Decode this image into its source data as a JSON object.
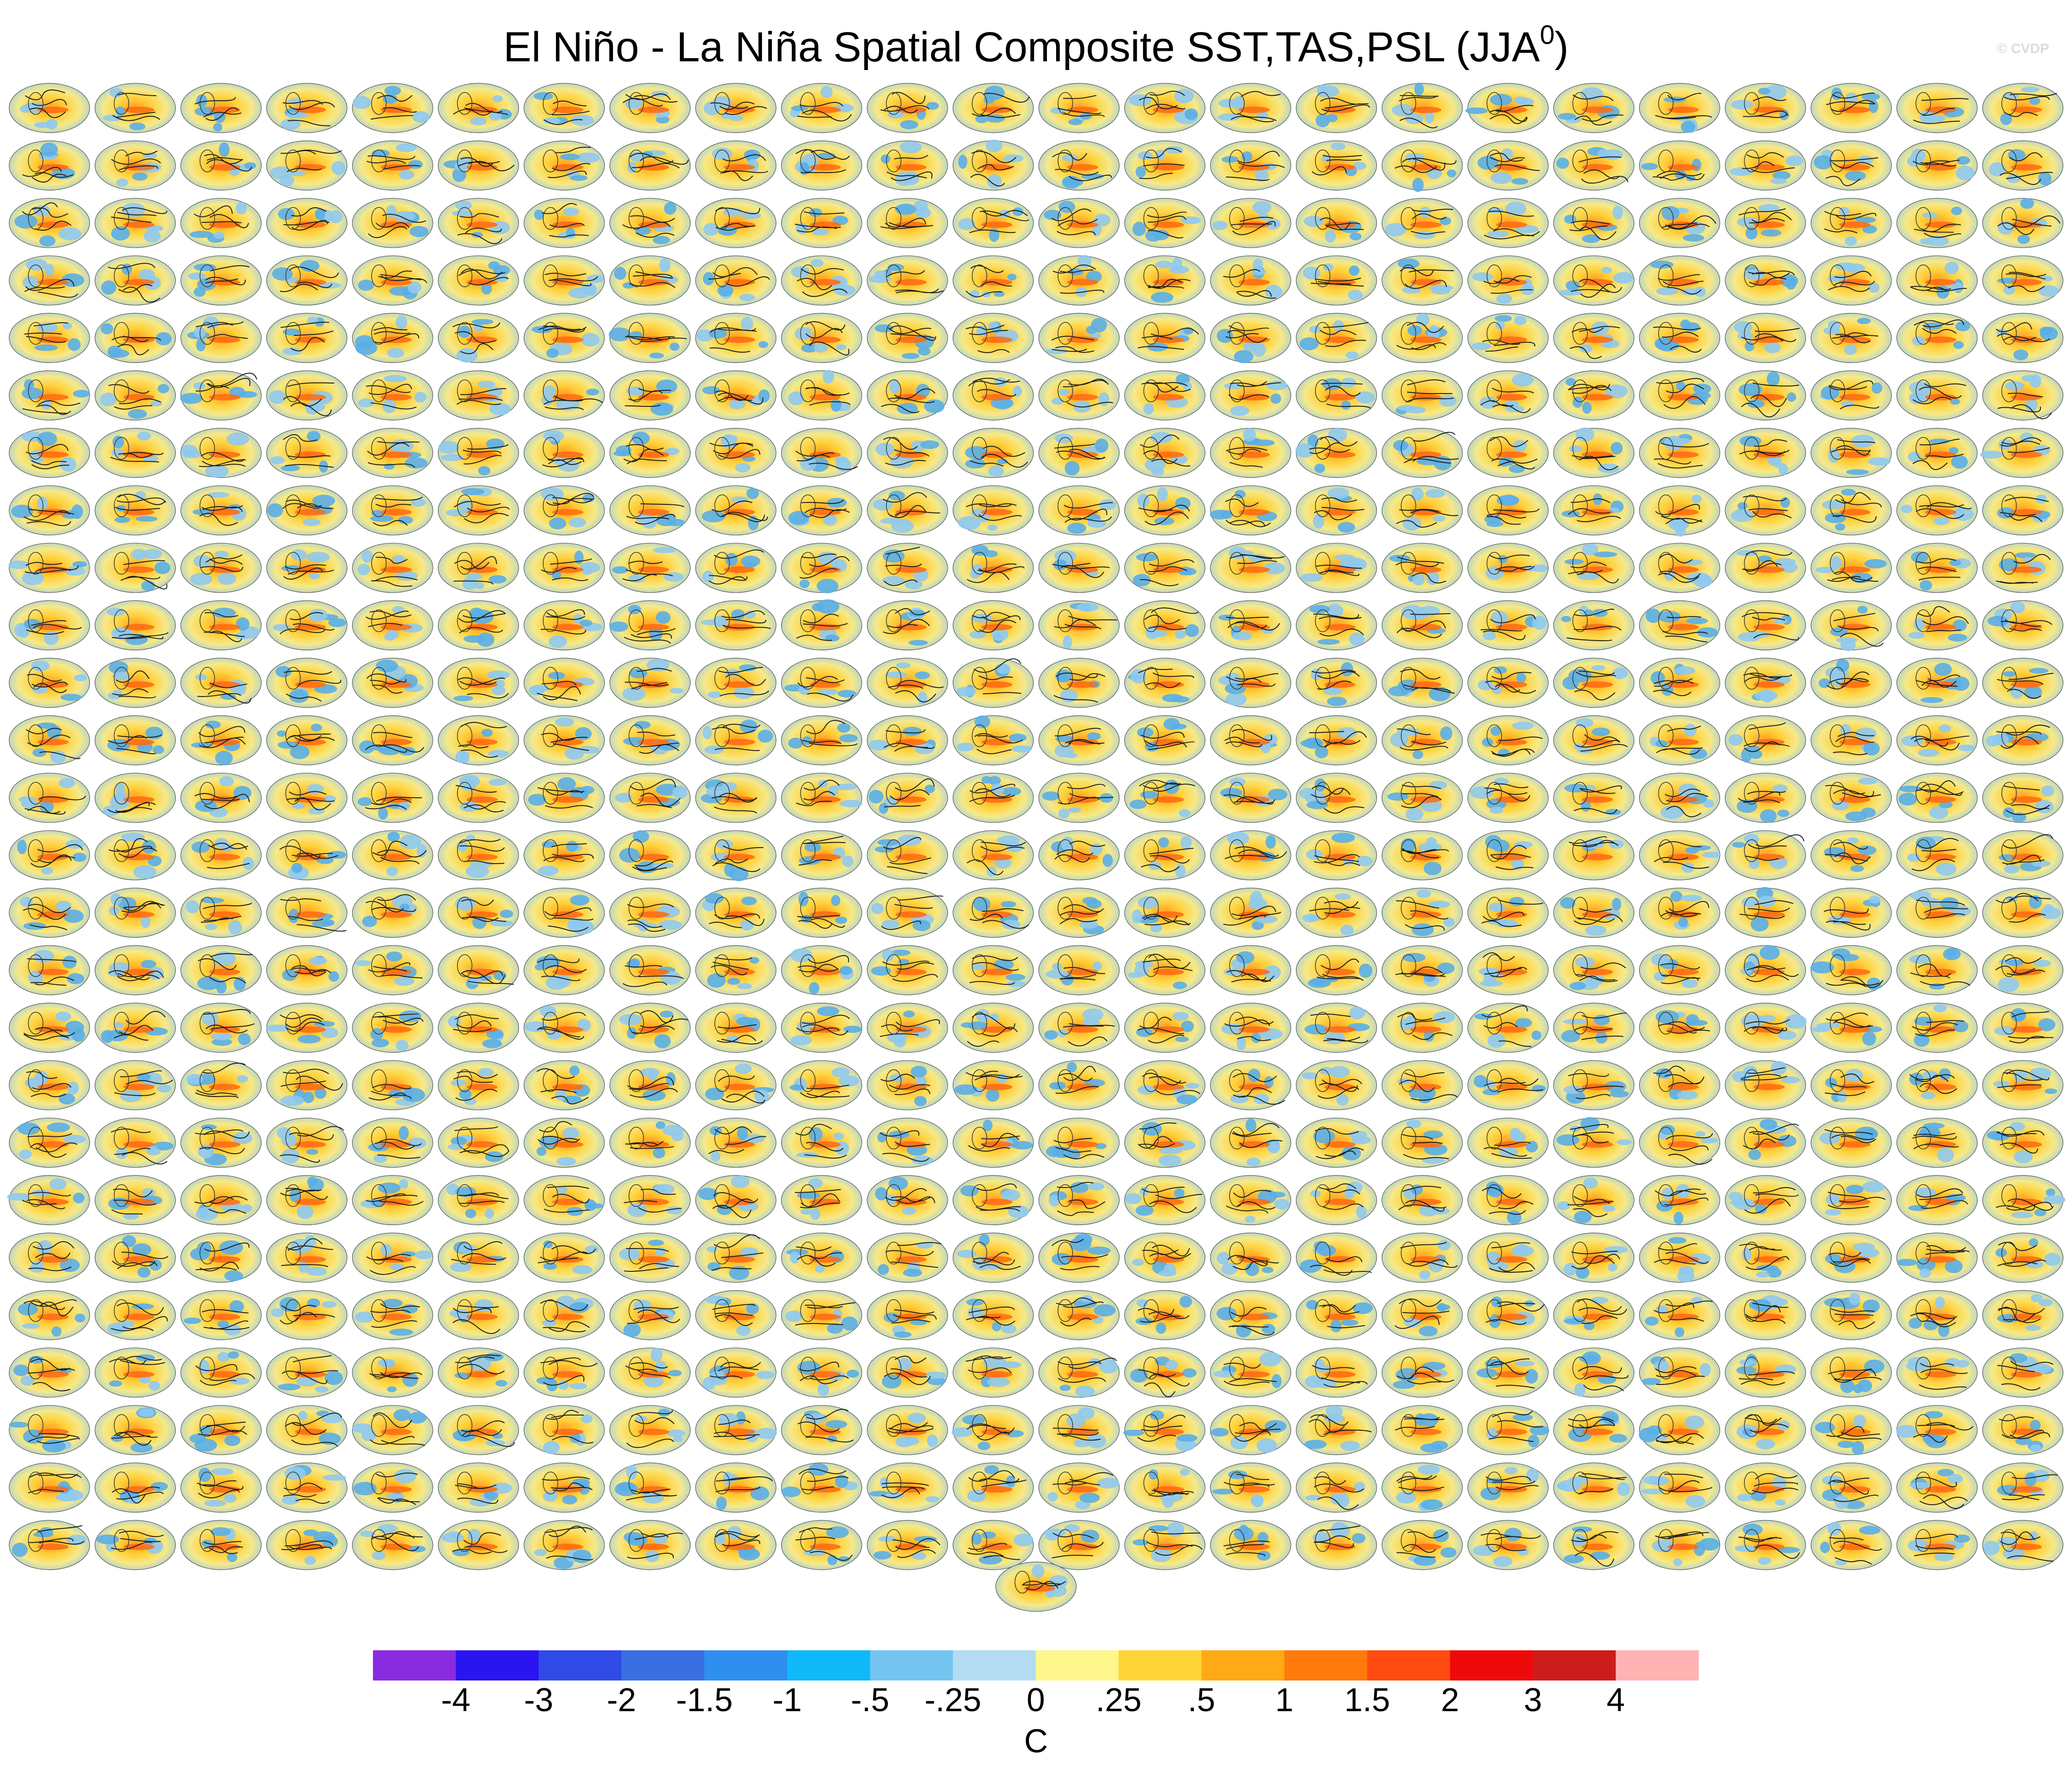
{
  "title": {
    "main": "El Niño - La Niña Spatial Composite SST,TAS,PSL (JJA",
    "superscript": "0",
    "close": ")"
  },
  "watermark": "© CVDP",
  "chart_data": {
    "type": "heatmap",
    "description_panels": "small-multiples grid of global map composites",
    "panel_rows": 26,
    "panel_columns": 24,
    "extra_panels": 1,
    "colorbar": {
      "unit": "C",
      "tick_labels": [
        "-4",
        "-3",
        "-2",
        "-1.5",
        "-1",
        "-.5",
        "-.25",
        "0",
        ".25",
        ".5",
        "1",
        "1.5",
        "2",
        "3",
        "4"
      ],
      "colors": [
        "#8a2be2",
        "#2a14f0",
        "#2f4ae6",
        "#3a6fe2",
        "#2f8ff0",
        "#0fb8f8",
        "#74c4f0",
        "#b3dcf2",
        "#fff68c",
        "#ffd535",
        "#ffaa14",
        "#ff7a0a",
        "#ff4b10",
        "#ee0a0a",
        "#cc1c1c",
        "#ffb3b3"
      ]
    }
  }
}
